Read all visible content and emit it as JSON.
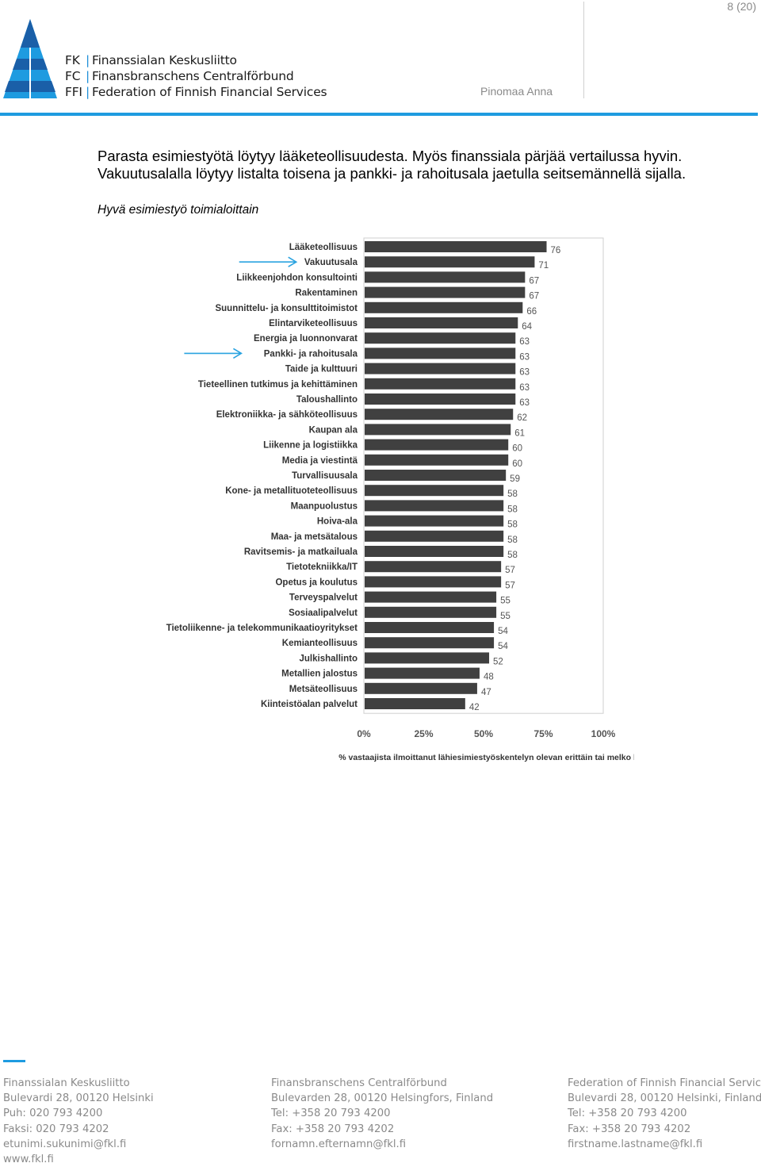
{
  "page": {
    "number": "8 (20)"
  },
  "header": {
    "author": "Pinomaa Anna",
    "logo_lines": [
      {
        "abbr": "FK",
        "name": "Finanssialan Keskusliitto"
      },
      {
        "abbr": "FC",
        "name": "Finansbranschens Centralförbund"
      },
      {
        "abbr": "FFI",
        "name": "Federation of Finnish Financial Services"
      }
    ],
    "colors": {
      "accent": "#1e9be0",
      "logo_dark": "#1a5fa8"
    }
  },
  "body": {
    "intro_line1": "Parasta esimiestyötä löytyy lääketeollisuudesta. Myös finanssiala pärjää vertailussa hyvin.",
    "intro_line2": "Vakuutusalalla löytyy listalta toisena ja pankki- ja rahoitusala jaetulla seitsemännellä sijalla.",
    "chart_caption": "Hyvä esimiestyö toimialoittain"
  },
  "chart_data": {
    "type": "bar",
    "orientation": "horizontal",
    "title": "",
    "xlabel": "% vastaajista ilmoittanut lähiesimiestyöskentelyn olevan erittäin tai melko hyvää",
    "ylabel": "",
    "xlim": [
      0,
      100
    ],
    "x_ticks": [
      "0%",
      "25%",
      "50%",
      "75%",
      "100%"
    ],
    "bar_color": "#404040",
    "arrow_color": "#2aa3e0",
    "highlighted": [
      "Vakuutusala",
      "Pankki- ja rahoitusala"
    ],
    "categories": [
      "Lääketeollisuus",
      "Vakuutusala",
      "Liikkeenjohdon konsultointi",
      "Rakentaminen",
      "Suunnittelu- ja konsulttitoimistot",
      "Elintarviketeollisuus",
      "Energia ja luonnonvarat",
      "Pankki- ja rahoitusala",
      "Taide ja kulttuuri",
      "Tieteellinen tutkimus ja kehittäminen",
      "Taloushallinto",
      "Elektroniikka- ja sähköteollisuus",
      "Kaupan ala",
      "Liikenne ja logistiikka",
      "Media ja viestintä",
      "Turvallisuusala",
      "Kone- ja metallituoteteollisuus",
      "Maanpuolustus",
      "Hoiva-ala",
      "Maa- ja metsätalous",
      "Ravitsemis- ja matkailuala",
      "Tietotekniikka/IT",
      "Opetus ja koulutus",
      "Terveyspalvelut",
      "Sosiaalipalvelut",
      "Tietoliikenne- ja telekommunikaatioyritykset",
      "Kemianteollisuus",
      "Julkishallinto",
      "Metallien jalostus",
      "Metsäteollisuus",
      "Kiinteistöalan palvelut"
    ],
    "values": [
      76,
      71,
      67,
      67,
      66,
      64,
      63,
      63,
      63,
      63,
      63,
      62,
      61,
      60,
      60,
      59,
      58,
      58,
      58,
      58,
      58,
      57,
      57,
      55,
      55,
      54,
      54,
      52,
      48,
      47,
      42
    ]
  },
  "footer": {
    "columns": [
      [
        "Finanssialan Keskusliitto",
        "Bulevardi 28, 00120 Helsinki",
        "Puh: 020 793 4200",
        "Faksi: 020 793 4202",
        "etunimi.sukunimi@fkl.fi",
        "www.fkl.fi"
      ],
      [
        "Finansbranschens Centralförbund",
        "Bulevarden 28, 00120 Helsingfors, Finland",
        "Tel: +358 20 793 4200",
        "Fax: +358 20 793 4202",
        "fornamn.efternamn@fkl.fi"
      ],
      [
        "Federation of Finnish Financial Services",
        "Bulevardi 28, 00120 Helsinki, Finland",
        "Tel: +358 20 793 4200",
        "Fax: +358 20 793 4202",
        "firstname.lastname@fkl.fi"
      ]
    ]
  }
}
